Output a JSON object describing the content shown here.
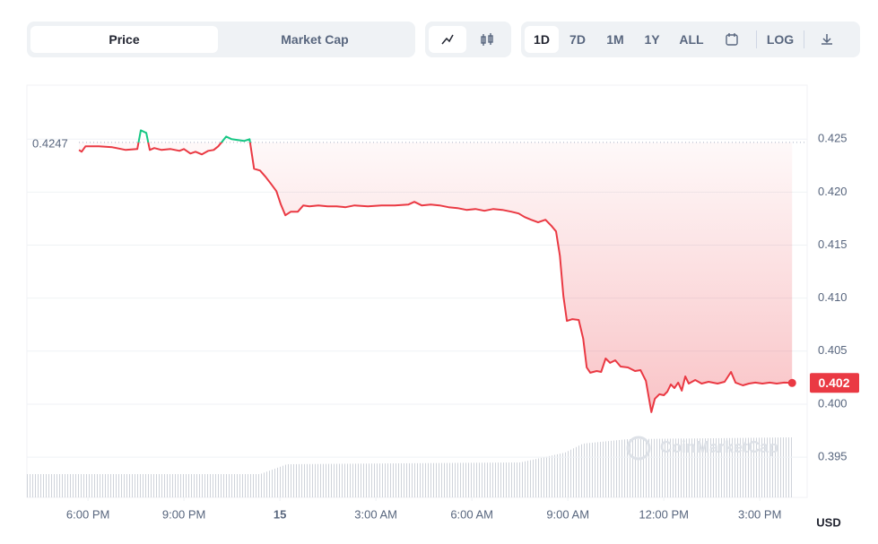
{
  "toolbar": {
    "tabs": [
      "Price",
      "Market Cap"
    ],
    "ranges": [
      "1D",
      "7D",
      "1M",
      "1Y",
      "ALL"
    ],
    "log": "LOG"
  },
  "chart_data": {
    "type": "line",
    "x": [
      17.72,
      17.8,
      17.92,
      18.34,
      18.76,
      19.18,
      19.54,
      19.65,
      19.82,
      19.93,
      20.07,
      20.3,
      20.58,
      20.86,
      21,
      21.2,
      21.36,
      21.56,
      21.76,
      21.93,
      22.07,
      22.21,
      22.32,
      22.49,
      22.68,
      22.88,
      23.05,
      23.19,
      23.38,
      23.55,
      23.72,
      23.89,
      24.03,
      24.17,
      24.34,
      24.56,
      24.73,
      24.92,
      25.2,
      25.49,
      25.77,
      26.05,
      26.33,
      26.75,
      27.17,
      27.59,
      28.01,
      28.2,
      28.43,
      28.71,
      28.99,
      29.27,
      29.55,
      29.83,
      30.11,
      30.39,
      30.67,
      30.95,
      31.23,
      31.46,
      31.65,
      31.85,
      32.07,
      32.3,
      32.49,
      32.63,
      32.75,
      32.86,
      32.97,
      33.14,
      33.34,
      33.48,
      33.59,
      33.7,
      33.9,
      34.04,
      34.18,
      34.32,
      34.48,
      34.65,
      34.88,
      35.1,
      35.27,
      35.44,
      35.61,
      35.72,
      35.86,
      36,
      36.11,
      36.22,
      36.33,
      36.45,
      36.56,
      36.67,
      36.78,
      36.98,
      37.18,
      37.4,
      37.68,
      37.9,
      38.1,
      38.24,
      38.47,
      38.66,
      38.86,
      39.08,
      39.31,
      39.53,
      39.76,
      40.01
    ],
    "series": [
      {
        "color": "#ea3943",
        "color_above": "#16c784",
        "values": [
          0.42399,
          0.42382,
          0.42432,
          0.42432,
          0.42424,
          0.42399,
          0.42407,
          0.42584,
          0.42559,
          0.42399,
          0.42416,
          0.42399,
          0.42407,
          0.4239,
          0.42407,
          0.42365,
          0.42382,
          0.42356,
          0.4239,
          0.42399,
          0.42432,
          0.42483,
          0.42525,
          0.425,
          0.42492,
          0.42483,
          0.425,
          0.42221,
          0.42204,
          0.42145,
          0.42078,
          0.4201,
          0.41883,
          0.41782,
          0.41816,
          0.41816,
          0.41875,
          0.41867,
          0.41875,
          0.41867,
          0.41867,
          0.41858,
          0.41875,
          0.41867,
          0.41875,
          0.41875,
          0.41883,
          0.41909,
          0.41875,
          0.41883,
          0.41875,
          0.41858,
          0.4185,
          0.41833,
          0.41841,
          0.41824,
          0.41841,
          0.41833,
          0.41816,
          0.41799,
          0.41765,
          0.4174,
          0.41715,
          0.4174,
          0.41681,
          0.4163,
          0.414,
          0.4102,
          0.40785,
          0.40802,
          0.40794,
          0.40617,
          0.40346,
          0.40296,
          0.40312,
          0.40304,
          0.40431,
          0.40389,
          0.40414,
          0.40355,
          0.40346,
          0.40312,
          0.40321,
          0.4022,
          0.39924,
          0.40051,
          0.40093,
          0.40084,
          0.40118,
          0.40186,
          0.40152,
          0.40203,
          0.40127,
          0.40262,
          0.40194,
          0.40228,
          0.40194,
          0.40211,
          0.40194,
          0.40211,
          0.40304,
          0.40203,
          0.40177,
          0.40194,
          0.40203,
          0.40194,
          0.40203,
          0.40194,
          0.40203,
          0.402
        ]
      }
    ],
    "reference": 0.4247,
    "watermark": "CoinMarketCap",
    "y_unit": "USD",
    "xlim": [
      16.09,
      40.48
    ],
    "ylim": [
      0.3912,
      0.4301
    ],
    "xticks": [
      {
        "value": 18,
        "label": "6:00 PM"
      },
      {
        "value": 21,
        "label": "9:00 PM"
      },
      {
        "value": 24,
        "label": "15"
      },
      {
        "value": 27,
        "label": "3:00 AM"
      },
      {
        "value": 30,
        "label": "6:00 AM"
      },
      {
        "value": 33,
        "label": "9:00 AM"
      },
      {
        "value": 36,
        "label": "12:00 PM"
      },
      {
        "value": 39,
        "label": "3:00 PM"
      }
    ],
    "yticks": [
      0.395,
      {
        "value": 0.4,
        "label": "0.400"
      },
      0.405,
      {
        "value": 0.41,
        "label": "0.410"
      },
      0.415,
      {
        "value": 0.42,
        "label": "0.420"
      },
      0.425
    ],
    "grid": true
  }
}
